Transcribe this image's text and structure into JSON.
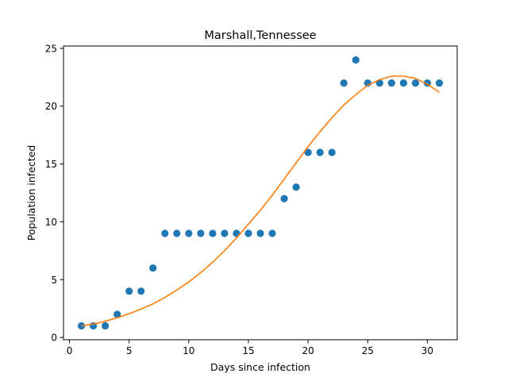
{
  "chart_data": {
    "type": "scatter",
    "title": "Marshall,Tennessee",
    "xlabel": "Days since infection",
    "ylabel": "Population infected",
    "xlim": [
      -0.5,
      32.5
    ],
    "ylim": [
      -0.2,
      25.2
    ],
    "x_ticks": [
      0,
      5,
      10,
      15,
      20,
      25,
      30
    ],
    "y_ticks": [
      0,
      5,
      10,
      15,
      20,
      25
    ],
    "grid": false,
    "legend": "none",
    "series": [
      {
        "type": "scatter",
        "color": "#1f77b4",
        "x": [
          1,
          2,
          3,
          4,
          5,
          6,
          7,
          8,
          9,
          10,
          11,
          12,
          13,
          14,
          15,
          16,
          17,
          18,
          19,
          20,
          21,
          22,
          23,
          24,
          25,
          26,
          27,
          28,
          29,
          30,
          31
        ],
        "y": [
          1,
          1,
          1,
          2,
          4,
          4,
          6,
          9,
          9,
          9,
          9,
          9,
          9,
          9,
          9,
          9,
          9,
          12,
          13,
          16,
          16,
          16,
          22,
          24,
          22,
          22,
          22,
          22,
          22,
          22,
          22
        ]
      },
      {
        "type": "line",
        "color": "#ff7f0e",
        "x": [
          1,
          2,
          3,
          4,
          5,
          6,
          7,
          8,
          9,
          10,
          11,
          12,
          13,
          14,
          15,
          16,
          17,
          18,
          19,
          20,
          21,
          22,
          23,
          24,
          25,
          26,
          27,
          28,
          29,
          30,
          31
        ],
        "y": [
          1.0,
          1.15,
          1.4,
          1.7,
          2.05,
          2.45,
          2.9,
          3.45,
          4.1,
          4.8,
          5.6,
          6.5,
          7.5,
          8.6,
          9.8,
          11.0,
          12.3,
          13.7,
          15.1,
          16.5,
          17.8,
          19.0,
          20.1,
          21.0,
          21.8,
          22.3,
          22.6,
          22.6,
          22.4,
          21.9,
          21.2
        ]
      }
    ]
  }
}
